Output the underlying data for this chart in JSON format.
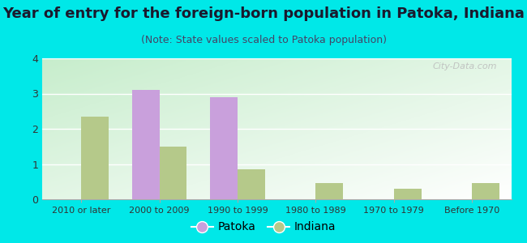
{
  "title": "Year of entry for the foreign-born population in Patoka, Indiana",
  "subtitle": "(Note: State values scaled to Patoka population)",
  "categories": [
    "2010 or later",
    "2000 to 2009",
    "1990 to 1999",
    "1980 to 1989",
    "1970 to 1979",
    "Before 1970"
  ],
  "patoka_values": [
    0,
    3.1,
    2.9,
    0,
    0,
    0
  ],
  "indiana_values": [
    2.35,
    1.5,
    0.85,
    0.45,
    0.3,
    0.47
  ],
  "patoka_color": "#c9a0dc",
  "indiana_color": "#b5c98a",
  "background_color": "#00e8e8",
  "ylim": [
    0,
    4
  ],
  "yticks": [
    0,
    1,
    2,
    3,
    4
  ],
  "bar_width": 0.35,
  "title_fontsize": 13,
  "subtitle_fontsize": 9,
  "legend_patoka": "Patoka",
  "legend_indiana": "Indiana",
  "watermark": "City-Data.com"
}
